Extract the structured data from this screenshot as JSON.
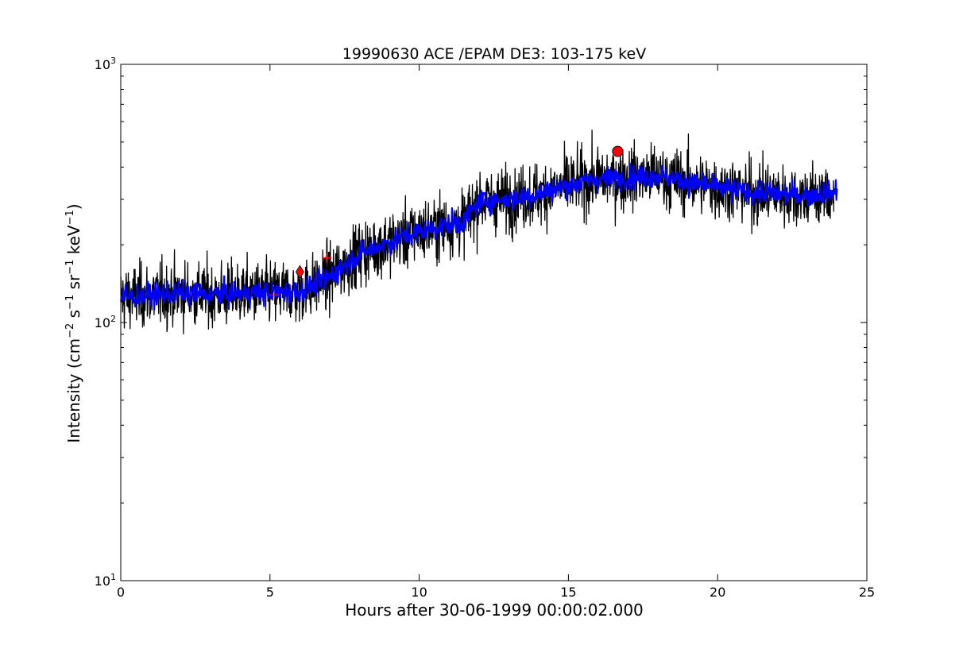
{
  "chart_data": {
    "type": "line",
    "title": "19990630 ACE /EPAM DE3: 103-175 keV",
    "xlabel": "Hours after 30-06-1999 00:00:02.000",
    "ylabel_parts": [
      "Intensity (cm",
      "−2",
      " s",
      "−1",
      " sr",
      "−1",
      " keV",
      "−1",
      ")"
    ],
    "x_scale": "linear",
    "y_scale": "log",
    "xlim": [
      0,
      25
    ],
    "ylim": [
      10,
      1000
    ],
    "x_ticks": [
      0,
      5,
      10,
      15,
      20,
      25
    ],
    "x_tick_labels": [
      "0",
      "5",
      "10",
      "15",
      "20",
      "25"
    ],
    "y_ticks": [
      10,
      100,
      1000
    ],
    "y_tick_labels": [
      {
        "base": "10",
        "exp": "1"
      },
      {
        "base": "10",
        "exp": "2"
      },
      {
        "base": "10",
        "exp": "3"
      }
    ],
    "grid": false,
    "legend": "none",
    "series": [
      {
        "style": "black noisy raw intensity",
        "color": "#000000",
        "x": [
          0,
          2,
          3,
          4,
          5,
          6,
          6.5,
          7,
          8,
          9,
          10,
          11,
          11.5,
          12,
          13,
          14,
          15,
          16,
          17,
          18,
          19,
          20,
          21,
          22,
          23,
          23.9
        ],
        "y": [
          125,
          130,
          128,
          130,
          130,
          132,
          140,
          150,
          185,
          205,
          225,
          240,
          245,
          295,
          300,
          315,
          340,
          360,
          365,
          370,
          350,
          335,
          320,
          315,
          310,
          312
        ]
      },
      {
        "style": "blue smoothed intensity",
        "color": "#0000ff",
        "x": [
          0,
          2,
          3,
          4,
          5,
          6,
          6.5,
          7,
          8,
          9,
          10,
          11,
          11.5,
          12,
          13,
          14,
          15,
          16,
          17,
          18,
          19,
          20,
          21,
          22,
          23,
          24
        ],
        "y": [
          125,
          130,
          128,
          130,
          130,
          132,
          140,
          150,
          185,
          205,
          225,
          240,
          245,
          295,
          300,
          315,
          340,
          360,
          365,
          370,
          350,
          335,
          320,
          315,
          310,
          320
        ]
      }
    ],
    "markers": [
      {
        "shape": "plus",
        "x": 5.15,
        "y": 128,
        "color": "#ff0000"
      },
      {
        "shape": "diamond",
        "x": 6.0,
        "y": 157,
        "color": "#ff0000"
      },
      {
        "shape": "plus",
        "x": 6.9,
        "y": 178,
        "color": "#ff0000"
      },
      {
        "shape": "circle",
        "x": 16.65,
        "y": 460,
        "color": "#ff0000"
      }
    ]
  }
}
